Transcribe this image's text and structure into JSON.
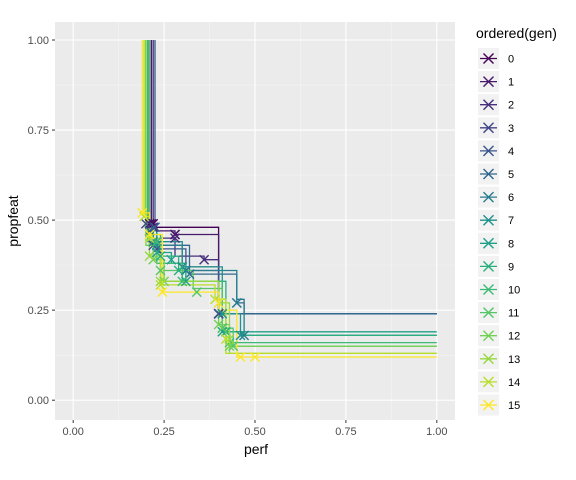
{
  "chart_data": {
    "type": "line",
    "xlabel": "perf",
    "ylabel": "propfeat",
    "xlim": [
      -0.05,
      1.05
    ],
    "ylim": [
      -0.055,
      1.05
    ],
    "x_ticks": [
      "0.00",
      "0.25",
      "0.50",
      "0.75",
      "1.00"
    ],
    "y_ticks": [
      "0.00",
      "0.25",
      "0.50",
      "0.75",
      "1.00"
    ],
    "grid": true,
    "legend_position": "right",
    "legend_title": "ordered(gen)",
    "series": [
      {
        "name": "0",
        "color": "#440154",
        "steps": [
          [
            0.21,
            1.0
          ],
          [
            0.21,
            0.49
          ],
          [
            0.22,
            0.49
          ],
          [
            0.22,
            0.48
          ],
          [
            0.4,
            0.48
          ],
          [
            0.4,
            0.24
          ],
          [
            1.0,
            0.24
          ]
        ],
        "points": [
          [
            0.21,
            0.49
          ],
          [
            0.22,
            0.49
          ],
          [
            0.28,
            0.46
          ],
          [
            0.4,
            0.24
          ]
        ]
      },
      {
        "name": "1",
        "color": "#481A6C",
        "steps": [
          [
            0.215,
            1.0
          ],
          [
            0.215,
            0.49
          ],
          [
            0.22,
            0.49
          ],
          [
            0.22,
            0.47
          ],
          [
            0.28,
            0.47
          ],
          [
            0.28,
            0.46
          ],
          [
            0.4,
            0.46
          ],
          [
            0.4,
            0.24
          ],
          [
            1.0,
            0.24
          ]
        ],
        "points": [
          [
            0.215,
            0.49
          ],
          [
            0.28,
            0.46
          ],
          [
            0.4,
            0.24
          ]
        ]
      },
      {
        "name": "2",
        "color": "#472F7D",
        "steps": [
          [
            0.22,
            1.0
          ],
          [
            0.22,
            0.48
          ],
          [
            0.23,
            0.48
          ],
          [
            0.23,
            0.45
          ],
          [
            0.28,
            0.45
          ],
          [
            0.28,
            0.4
          ],
          [
            0.36,
            0.4
          ],
          [
            0.36,
            0.39
          ],
          [
            0.4,
            0.39
          ],
          [
            0.4,
            0.24
          ],
          [
            1.0,
            0.24
          ]
        ],
        "points": [
          [
            0.22,
            0.48
          ],
          [
            0.28,
            0.45
          ],
          [
            0.36,
            0.39
          ],
          [
            0.4,
            0.24
          ]
        ]
      },
      {
        "name": "3",
        "color": "#414487",
        "steps": [
          [
            0.2,
            1.0
          ],
          [
            0.2,
            0.49
          ],
          [
            0.22,
            0.49
          ],
          [
            0.22,
            0.43
          ],
          [
            0.3,
            0.43
          ],
          [
            0.3,
            0.37
          ],
          [
            0.4,
            0.37
          ],
          [
            0.4,
            0.24
          ],
          [
            1.0,
            0.24
          ]
        ],
        "points": [
          [
            0.2,
            0.49
          ],
          [
            0.22,
            0.43
          ],
          [
            0.3,
            0.37
          ],
          [
            0.4,
            0.24
          ]
        ]
      },
      {
        "name": "4",
        "color": "#39568C",
        "steps": [
          [
            0.225,
            1.0
          ],
          [
            0.225,
            0.48
          ],
          [
            0.23,
            0.48
          ],
          [
            0.23,
            0.42
          ],
          [
            0.31,
            0.42
          ],
          [
            0.31,
            0.36
          ],
          [
            0.4,
            0.36
          ],
          [
            0.4,
            0.24
          ],
          [
            1.0,
            0.24
          ]
        ],
        "points": [
          [
            0.225,
            0.48
          ],
          [
            0.23,
            0.42
          ],
          [
            0.31,
            0.36
          ],
          [
            0.4,
            0.24
          ]
        ]
      },
      {
        "name": "5",
        "color": "#31688E",
        "steps": [
          [
            0.21,
            1.0
          ],
          [
            0.21,
            0.47
          ],
          [
            0.23,
            0.47
          ],
          [
            0.23,
            0.43
          ],
          [
            0.32,
            0.43
          ],
          [
            0.32,
            0.35
          ],
          [
            0.45,
            0.35
          ],
          [
            0.45,
            0.27
          ],
          [
            0.47,
            0.27
          ],
          [
            0.47,
            0.24
          ],
          [
            0.4,
            0.24
          ],
          [
            1.0,
            0.24
          ]
        ],
        "points": [
          [
            0.21,
            0.47
          ],
          [
            0.32,
            0.35
          ],
          [
            0.45,
            0.27
          ]
        ]
      },
      {
        "name": "6",
        "color": "#287D8E",
        "steps": [
          [
            0.205,
            1.0
          ],
          [
            0.205,
            0.48
          ],
          [
            0.22,
            0.48
          ],
          [
            0.22,
            0.43
          ],
          [
            0.3,
            0.43
          ],
          [
            0.3,
            0.36
          ],
          [
            0.45,
            0.36
          ],
          [
            0.45,
            0.28
          ],
          [
            0.47,
            0.28
          ],
          [
            0.47,
            0.18
          ],
          [
            1.0,
            0.18
          ]
        ],
        "points": [
          [
            0.23,
            0.43
          ],
          [
            0.31,
            0.36
          ],
          [
            0.45,
            0.27
          ],
          [
            0.47,
            0.18
          ]
        ]
      },
      {
        "name": "7",
        "color": "#21918C",
        "steps": [
          [
            0.2,
            1.0
          ],
          [
            0.2,
            0.47
          ],
          [
            0.22,
            0.47
          ],
          [
            0.22,
            0.44
          ],
          [
            0.3,
            0.44
          ],
          [
            0.3,
            0.37
          ],
          [
            0.41,
            0.37
          ],
          [
            0.41,
            0.24
          ],
          [
            0.46,
            0.24
          ],
          [
            0.46,
            0.18
          ],
          [
            1.0,
            0.18
          ]
        ],
        "points": [
          [
            0.22,
            0.44
          ],
          [
            0.3,
            0.37
          ],
          [
            0.41,
            0.24
          ],
          [
            0.46,
            0.18
          ]
        ]
      },
      {
        "name": "8",
        "color": "#1FA188",
        "steps": [
          [
            0.205,
            1.0
          ],
          [
            0.205,
            0.47
          ],
          [
            0.23,
            0.47
          ],
          [
            0.23,
            0.41
          ],
          [
            0.27,
            0.41
          ],
          [
            0.27,
            0.38
          ],
          [
            0.31,
            0.38
          ],
          [
            0.31,
            0.33
          ],
          [
            0.41,
            0.33
          ],
          [
            0.41,
            0.19
          ],
          [
            1.0,
            0.19
          ]
        ],
        "points": [
          [
            0.23,
            0.41
          ],
          [
            0.27,
            0.39
          ],
          [
            0.31,
            0.33
          ],
          [
            0.41,
            0.19
          ]
        ]
      },
      {
        "name": "9",
        "color": "#29AF7F",
        "steps": [
          [
            0.2,
            1.0
          ],
          [
            0.2,
            0.46
          ],
          [
            0.24,
            0.46
          ],
          [
            0.24,
            0.4
          ],
          [
            0.29,
            0.4
          ],
          [
            0.29,
            0.36
          ],
          [
            0.31,
            0.36
          ],
          [
            0.31,
            0.33
          ],
          [
            0.42,
            0.33
          ],
          [
            0.42,
            0.19
          ],
          [
            0.47,
            0.19
          ],
          [
            0.47,
            0.18
          ],
          [
            1.0,
            0.18
          ]
        ],
        "points": [
          [
            0.24,
            0.4
          ],
          [
            0.29,
            0.36
          ],
          [
            0.42,
            0.19
          ]
        ]
      },
      {
        "name": "10",
        "color": "#3CBB75",
        "steps": [
          [
            0.205,
            1.0
          ],
          [
            0.205,
            0.44
          ],
          [
            0.23,
            0.44
          ],
          [
            0.23,
            0.38
          ],
          [
            0.3,
            0.38
          ],
          [
            0.3,
            0.33
          ],
          [
            0.41,
            0.33
          ],
          [
            0.41,
            0.2
          ],
          [
            0.43,
            0.2
          ],
          [
            0.43,
            0.16
          ],
          [
            1.0,
            0.16
          ]
        ],
        "points": [
          [
            0.23,
            0.44
          ],
          [
            0.3,
            0.33
          ],
          [
            0.41,
            0.2
          ],
          [
            0.43,
            0.16
          ]
        ]
      },
      {
        "name": "11",
        "color": "#55C667",
        "steps": [
          [
            0.21,
            1.0
          ],
          [
            0.21,
            0.43
          ],
          [
            0.24,
            0.43
          ],
          [
            0.24,
            0.36
          ],
          [
            0.33,
            0.36
          ],
          [
            0.33,
            0.31
          ],
          [
            0.41,
            0.31
          ],
          [
            0.41,
            0.2
          ],
          [
            0.44,
            0.2
          ],
          [
            0.44,
            0.15
          ],
          [
            1.0,
            0.15
          ]
        ],
        "points": [
          [
            0.24,
            0.36
          ],
          [
            0.34,
            0.3
          ],
          [
            0.41,
            0.2
          ],
          [
            0.44,
            0.15
          ]
        ]
      },
      {
        "name": "12",
        "color": "#73D055",
        "steps": [
          [
            0.2,
            1.0
          ],
          [
            0.2,
            0.43
          ],
          [
            0.22,
            0.43
          ],
          [
            0.22,
            0.39
          ],
          [
            0.25,
            0.39
          ],
          [
            0.25,
            0.33
          ],
          [
            0.4,
            0.33
          ],
          [
            0.4,
            0.21
          ],
          [
            0.43,
            0.21
          ],
          [
            0.43,
            0.15
          ],
          [
            1.0,
            0.15
          ]
        ],
        "points": [
          [
            0.22,
            0.39
          ],
          [
            0.25,
            0.33
          ],
          [
            0.4,
            0.21
          ],
          [
            0.43,
            0.15
          ]
        ]
      },
      {
        "name": "13",
        "color": "#95D840",
        "steps": [
          [
            0.2,
            1.0
          ],
          [
            0.2,
            0.47
          ],
          [
            0.21,
            0.47
          ],
          [
            0.21,
            0.4
          ],
          [
            0.24,
            0.4
          ],
          [
            0.24,
            0.33
          ],
          [
            0.4,
            0.33
          ],
          [
            0.4,
            0.27
          ],
          [
            0.43,
            0.27
          ],
          [
            0.43,
            0.13
          ],
          [
            1.0,
            0.13
          ]
        ],
        "points": [
          [
            0.21,
            0.4
          ],
          [
            0.24,
            0.33
          ],
          [
            0.4,
            0.27
          ],
          [
            0.43,
            0.17
          ]
        ]
      },
      {
        "name": "14",
        "color": "#B8DE29",
        "steps": [
          [
            0.195,
            1.0
          ],
          [
            0.195,
            0.51
          ],
          [
            0.21,
            0.51
          ],
          [
            0.21,
            0.45
          ],
          [
            0.24,
            0.45
          ],
          [
            0.24,
            0.32
          ],
          [
            0.39,
            0.32
          ],
          [
            0.39,
            0.28
          ],
          [
            0.42,
            0.28
          ],
          [
            0.42,
            0.13
          ],
          [
            1.0,
            0.13
          ]
        ],
        "points": [
          [
            0.195,
            0.51
          ],
          [
            0.21,
            0.45
          ],
          [
            0.24,
            0.32
          ],
          [
            0.39,
            0.28
          ],
          [
            0.42,
            0.17
          ]
        ]
      },
      {
        "name": "15",
        "color": "#FDE725",
        "steps": [
          [
            0.19,
            1.0
          ],
          [
            0.19,
            0.52
          ],
          [
            0.21,
            0.52
          ],
          [
            0.21,
            0.46
          ],
          [
            0.245,
            0.46
          ],
          [
            0.245,
            0.3
          ],
          [
            0.4,
            0.3
          ],
          [
            0.4,
            0.25
          ],
          [
            0.45,
            0.25
          ],
          [
            0.45,
            0.12
          ],
          [
            1.0,
            0.12
          ]
        ],
        "points": [
          [
            0.19,
            0.52
          ],
          [
            0.21,
            0.46
          ],
          [
            0.245,
            0.3
          ],
          [
            0.4,
            0.27
          ],
          [
            0.46,
            0.12
          ],
          [
            0.5,
            0.12
          ]
        ]
      }
    ]
  }
}
